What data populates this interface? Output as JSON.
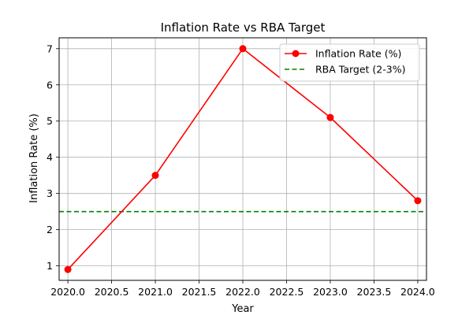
{
  "chart_data": {
    "type": "line",
    "title": "Inflation Rate vs RBA Target",
    "xlabel": "Year",
    "ylabel": "Inflation Rate (%)",
    "xlim": [
      2019.9,
      2024.1
    ],
    "ylim": [
      0.6,
      7.3
    ],
    "xticks": [
      2020.0,
      2020.5,
      2021.0,
      2021.5,
      2022.0,
      2022.5,
      2023.0,
      2023.5,
      2024.0
    ],
    "xtick_labels": [
      "2020.0",
      "2020.5",
      "2021.0",
      "2021.5",
      "2022.0",
      "2022.5",
      "2023.0",
      "2023.5",
      "2024.0"
    ],
    "yticks": [
      1,
      2,
      3,
      4,
      5,
      6,
      7
    ],
    "ytick_labels": [
      "1",
      "2",
      "3",
      "4",
      "5",
      "6",
      "7"
    ],
    "grid": true,
    "legend_position": "top-right",
    "series": [
      {
        "name": "Inflation Rate (%)",
        "style": "solid-line-with-markers",
        "color": "#ff0000",
        "x": [
          2020,
          2021,
          2022,
          2023,
          2024
        ],
        "y": [
          0.9,
          3.5,
          7.0,
          5.1,
          2.8
        ]
      },
      {
        "name": "RBA Target (2-3%)",
        "style": "dashed-horizontal-line",
        "color": "#008000",
        "y": 2.5
      }
    ]
  }
}
